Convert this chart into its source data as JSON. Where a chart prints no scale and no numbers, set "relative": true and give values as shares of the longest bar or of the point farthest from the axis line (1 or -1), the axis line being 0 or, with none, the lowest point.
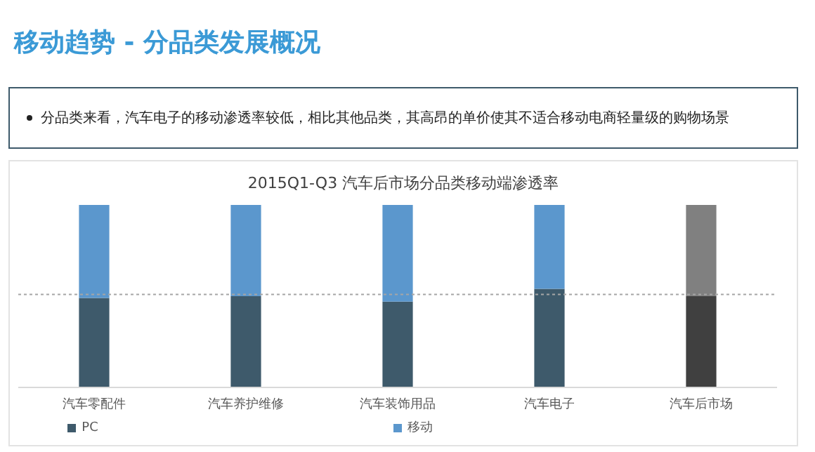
{
  "chart_data": {
    "type": "bar",
    "title": "移动趋势 - 分品类发展概况",
    "subtitle": "2015Q1-Q3 汽车后市场分品类移动端渗透率",
    "annotations": [
      "分品类来看，汽车电子的移动渗透率较低，相比其他品类，其高昂的单价使其不适合移动电商轻量级的购物场景"
    ],
    "categories": [
      "汽车零配件",
      "汽车养护维修",
      "汽车装饰用品",
      "汽车电子",
      "汽车后市场"
    ],
    "relative": true,
    "stacked": true,
    "legend": "bottom",
    "grid": false,
    "ref_lines": [
      {
        "axis": "y",
        "value": 0.51,
        "color": "#a6a6a6",
        "line_style": "dotted"
      }
    ],
    "series": [
      {
        "name": "PC",
        "color": "#3e5a6b",
        "colors": [
          "#3e5a6b",
          "#3e5a6b",
          "#3e5a6b",
          "#3e5a6b",
          "#404040"
        ],
        "values": [
          0.49,
          0.5,
          0.47,
          0.54,
          0.5
        ]
      },
      {
        "name": "移动",
        "color": "#5b97cd",
        "colors": [
          "#5b97cd",
          "#5b97cd",
          "#5b97cd",
          "#5b97cd",
          "#808080"
        ],
        "values": [
          0.51,
          0.5,
          0.53,
          0.46,
          0.5
        ]
      }
    ]
  }
}
